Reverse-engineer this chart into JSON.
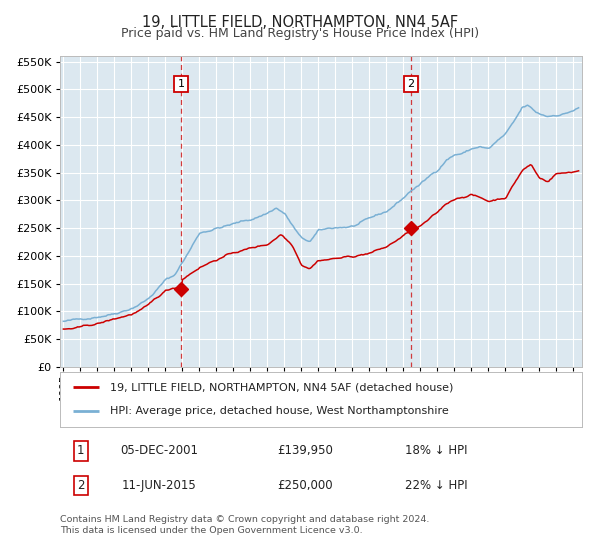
{
  "title": "19, LITTLE FIELD, NORTHAMPTON, NN4 5AF",
  "subtitle": "Price paid vs. HM Land Registry's House Price Index (HPI)",
  "legend_line1": "19, LITTLE FIELD, NORTHAMPTON, NN4 5AF (detached house)",
  "legend_line2": "HPI: Average price, detached house, West Northamptonshire",
  "footnote1": "Contains HM Land Registry data © Crown copyright and database right 2024.",
  "footnote2": "This data is licensed under the Open Government Licence v3.0.",
  "annotation1_date": "05-DEC-2001",
  "annotation1_price": "£139,950",
  "annotation1_hpi": "18% ↓ HPI",
  "annotation2_date": "11-JUN-2015",
  "annotation2_price": "£250,000",
  "annotation2_hpi": "22% ↓ HPI",
  "purchase1_year": 2001.92,
  "purchase1_value": 139950,
  "purchase2_year": 2015.44,
  "purchase2_value": 250000,
  "hpi_color": "#7ab0d4",
  "price_color": "#cc0000",
  "fig_bg": "#ffffff",
  "plot_bg": "#dce8f0",
  "grid_color": "#ffffff",
  "vline_color": "#cc0000",
  "yticks": [
    0,
    50000,
    100000,
    150000,
    200000,
    250000,
    300000,
    350000,
    400000,
    450000,
    500000,
    550000
  ],
  "xlim": [
    1994.8,
    2025.5
  ],
  "ylim": [
    0,
    560000
  ],
  "hpi_key_years": [
    1995,
    1996,
    1997,
    1998,
    1999,
    2000,
    2001,
    2001.5,
    2002,
    2002.5,
    2003,
    2004,
    2005,
    2006,
    2007,
    2007.5,
    2008,
    2009.0,
    2009.5,
    2010,
    2011,
    2012,
    2013,
    2014,
    2015,
    2015.5,
    2016,
    2017,
    2017.5,
    2018,
    2018.5,
    2019,
    2019.5,
    2020,
    2020.5,
    2021,
    2021.5,
    2022,
    2022.3,
    2022.8,
    2023,
    2023.5,
    2024,
    2024.5,
    2025.3
  ],
  "hpi_key_vals": [
    82000,
    84000,
    92000,
    100000,
    112000,
    130000,
    163000,
    170000,
    195000,
    220000,
    248000,
    258000,
    265000,
    272000,
    285000,
    295000,
    285000,
    238000,
    232000,
    250000,
    255000,
    258000,
    268000,
    280000,
    305000,
    320000,
    330000,
    355000,
    375000,
    385000,
    388000,
    395000,
    400000,
    395000,
    408000,
    420000,
    440000,
    465000,
    468000,
    455000,
    452000,
    448000,
    452000,
    455000,
    465000
  ],
  "price_key_years": [
    1995,
    1996,
    1997,
    1998,
    1999,
    2000,
    2001,
    2001.5,
    2001.92,
    2002,
    2003,
    2004,
    2005,
    2006,
    2007,
    2007.8,
    2008.5,
    2009.0,
    2009.5,
    2010,
    2011,
    2012,
    2013,
    2014,
    2015,
    2015.44,
    2016,
    2017,
    2017.5,
    2018,
    2019,
    2020,
    2021,
    2022,
    2022.5,
    2023,
    2023.5,
    2024,
    2024.5,
    2025.3
  ],
  "price_key_vals": [
    68000,
    70000,
    76000,
    84000,
    93000,
    107000,
    132000,
    138000,
    139950,
    155000,
    178000,
    193000,
    205000,
    213000,
    220000,
    240000,
    220000,
    188000,
    183000,
    198000,
    202000,
    205000,
    212000,
    222000,
    242000,
    250000,
    258000,
    280000,
    295000,
    305000,
    315000,
    302000,
    310000,
    360000,
    370000,
    345000,
    340000,
    355000,
    355000,
    360000
  ]
}
